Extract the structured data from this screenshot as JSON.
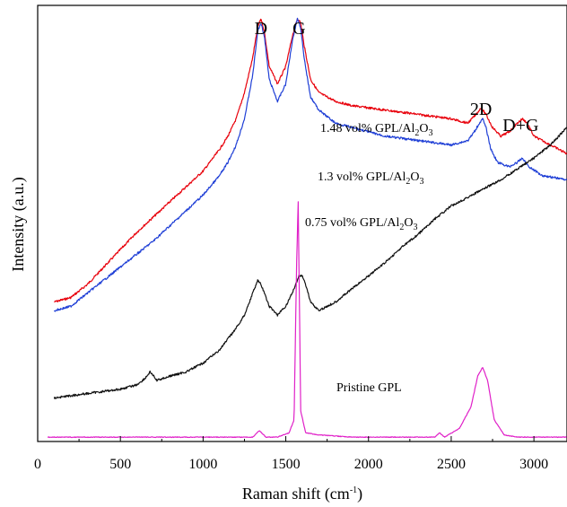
{
  "chart_data": {
    "type": "line",
    "xlabel": "Raman shift (cm",
    "xlabel_sup": "-1",
    "xlabel_close": ")",
    "ylabel": "Intensity (a.u.)",
    "xlim": [
      0,
      3200
    ],
    "ylim": [
      0,
      100
    ],
    "xticks": [
      0,
      500,
      1000,
      1500,
      2000,
      2500,
      3000
    ],
    "xtick_labels": [
      "0",
      "500",
      "1000",
      "1500",
      "2000",
      "2500",
      "3000"
    ],
    "y_tick_labels_shown": false,
    "grid": false,
    "peak_labels": [
      {
        "text": "D",
        "x": 1350
      },
      {
        "text": "G",
        "x": 1580
      },
      {
        "text": "2D",
        "x": 2680
      },
      {
        "text": "D+G",
        "x": 2920
      }
    ],
    "series": [
      {
        "label_prefix": "1.48 vol% GPL/Al",
        "label_sub1": "2",
        "label_mid": "O",
        "label_sub2": "3",
        "color": "#e8000b",
        "x": [
          100,
          200,
          300,
          400,
          500,
          600,
          700,
          800,
          900,
          1000,
          1100,
          1150,
          1200,
          1250,
          1300,
          1330,
          1350,
          1370,
          1400,
          1450,
          1500,
          1540,
          1570,
          1590,
          1610,
          1650,
          1700,
          1800,
          1900,
          2000,
          2100,
          2200,
          2300,
          2400,
          2500,
          2600,
          2650,
          2680,
          2710,
          2750,
          2800,
          2850,
          2900,
          2930,
          2960,
          3000,
          3100,
          3200
        ],
        "y": [
          68,
          67,
          64,
          60,
          56,
          52,
          48.5,
          45,
          41.5,
          38,
          33,
          30,
          26,
          20,
          12,
          5,
          3,
          6,
          14,
          18,
          14,
          7,
          3,
          4,
          9,
          17,
          20,
          22,
          23,
          23.5,
          24,
          24.5,
          25,
          25.5,
          26,
          27,
          25,
          23.5,
          25,
          28,
          30,
          29,
          27,
          26,
          27,
          30,
          32,
          34
        ]
      },
      {
        "label_prefix": "1.3 vol% GPL/Al",
        "label_sub1": "2",
        "label_mid": "O",
        "label_sub2": "3",
        "color": "#1f3fd6",
        "x": [
          100,
          200,
          300,
          400,
          500,
          600,
          700,
          800,
          900,
          1000,
          1100,
          1150,
          1200,
          1250,
          1300,
          1330,
          1350,
          1370,
          1400,
          1450,
          1500,
          1540,
          1570,
          1590,
          1610,
          1650,
          1700,
          1800,
          1900,
          2000,
          2100,
          2200,
          2300,
          2400,
          2500,
          2600,
          2640,
          2670,
          2690,
          2710,
          2740,
          2780,
          2850,
          2900,
          2930,
          2970,
          3050,
          3200
        ],
        "y": [
          70,
          69,
          66,
          63,
          60,
          57,
          54,
          50.5,
          47,
          43.5,
          39,
          36,
          32,
          26,
          16,
          6,
          4,
          7,
          17,
          22,
          18,
          8,
          3,
          5,
          12,
          21,
          24,
          27,
          28,
          29,
          30,
          30.5,
          31,
          31.5,
          32,
          31,
          29,
          27,
          26,
          28,
          33,
          36,
          37,
          36,
          35,
          37,
          39,
          40
        ]
      },
      {
        "label_prefix": "0.75 vol% GPL/Al",
        "label_sub1": "2",
        "label_mid": "O",
        "label_sub2": "3",
        "color": "#111111",
        "x": [
          100,
          200,
          300,
          400,
          500,
          600,
          650,
          680,
          720,
          800,
          900,
          1000,
          1100,
          1200,
          1250,
          1300,
          1330,
          1350,
          1370,
          1400,
          1450,
          1500,
          1550,
          1580,
          1600,
          1620,
          1650,
          1700,
          1800,
          1900,
          2000,
          2100,
          2200,
          2300,
          2400,
          2500,
          2600,
          2700,
          2800,
          2900,
          3000,
          3100,
          3200
        ],
        "y": [
          90,
          89.5,
          89,
          88.5,
          88,
          87,
          85.5,
          84,
          86,
          85,
          84,
          82,
          79,
          74,
          71,
          66,
          63,
          64,
          66,
          69,
          71,
          69,
          65,
          62,
          62,
          64,
          68,
          70,
          68,
          65,
          62,
          59,
          55.5,
          52.5,
          49,
          46,
          44,
          42,
          40,
          37.5,
          35,
          32,
          28
        ]
      },
      {
        "label": "Pristine GPL",
        "color": "#e020c8",
        "x": [
          60,
          300,
          600,
          900,
          1200,
          1300,
          1340,
          1380,
          1450,
          1520,
          1550,
          1565,
          1575,
          1590,
          1620,
          1700,
          1900,
          2100,
          2300,
          2400,
          2430,
          2460,
          2550,
          2620,
          2660,
          2690,
          2720,
          2760,
          2820,
          2900,
          3000,
          3200
        ],
        "y": [
          99,
          99,
          99,
          99,
          99,
          99,
          97.5,
          99,
          99,
          98,
          95,
          60,
          45,
          93,
          98,
          98.5,
          99,
          99,
          99,
          99,
          98,
          99,
          97,
          92,
          85,
          83,
          86,
          95,
          98.5,
          99,
          99,
          99
        ]
      }
    ]
  }
}
